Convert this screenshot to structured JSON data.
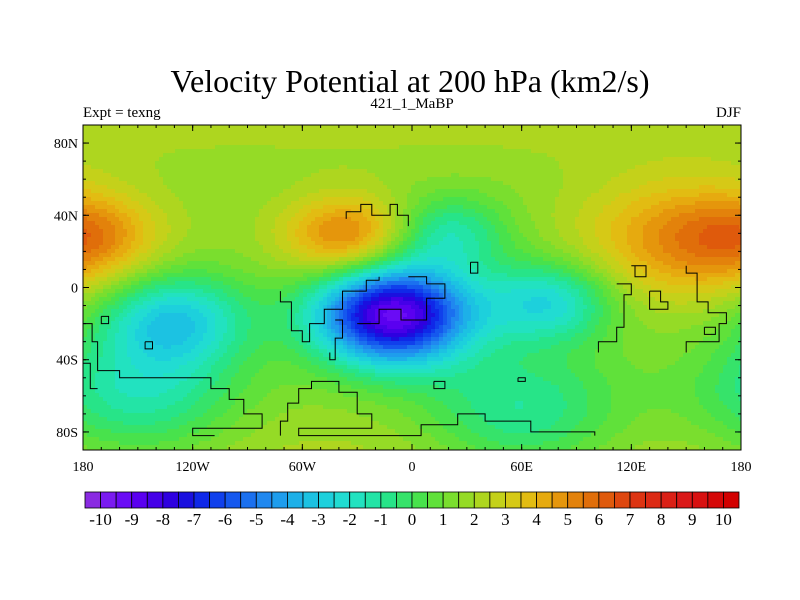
{
  "chart_data": {
    "type": "heatmap",
    "title": "Velocity Potential at 200 hPa (km2/s)",
    "subtitle_center": "421_1_MaBP",
    "subtitle_left": "Expt = texng",
    "subtitle_right": "DJF",
    "x_ticks": [
      "180",
      "120W",
      "60W",
      "0",
      "60E",
      "120E",
      "180"
    ],
    "x_tick_values": [
      -180,
      -120,
      -60,
      0,
      60,
      120,
      180
    ],
    "y_ticks": [
      "80N",
      "40N",
      "0",
      "40S",
      "80S"
    ],
    "y_tick_values": [
      80,
      40,
      0,
      -40,
      -80
    ],
    "xlim": [
      -180,
      180
    ],
    "ylim": [
      -90,
      90
    ],
    "colorbar": {
      "labels": [
        "-10",
        "-9",
        "-8",
        "-7",
        "-6",
        "-5",
        "-4",
        "-3",
        "-2",
        "-1",
        "0",
        "1",
        "2",
        "3",
        "4",
        "5",
        "6",
        "7",
        "8",
        "9",
        "10"
      ],
      "label_values": [
        -10,
        -9,
        -8,
        -7,
        -6,
        -5,
        -4,
        -3,
        -2,
        -1,
        0,
        1,
        2,
        3,
        4,
        5,
        6,
        7,
        8,
        9,
        10
      ],
      "levels_min": -10,
      "levels_step": 0.5,
      "n_boxes": 42,
      "colors": [
        "#8a2be2",
        "#7a1bf0",
        "#6a0cf5",
        "#5a00f0",
        "#4500e8",
        "#2e00e0",
        "#1a10df",
        "#0f28e8",
        "#1040ec",
        "#1558ee",
        "#1b70ef",
        "#2088ef",
        "#1e9ded",
        "#1db0e8",
        "#1cc2e2",
        "#1dd0dc",
        "#21dcd2",
        "#22e2c0",
        "#23e4a6",
        "#27e488",
        "#36e36a",
        "#48e24c",
        "#60e13a",
        "#7ade2e",
        "#95db26",
        "#aed61f",
        "#c4d11a",
        "#d6c916",
        "#e2bc12",
        "#e6aa0f",
        "#e5960c",
        "#e3820b",
        "#e06e0a",
        "#df5a0c",
        "#de470f",
        "#dd3412",
        "#dc2a14",
        "#db2016",
        "#da1818",
        "#d81010",
        "#d50808",
        "#d20000"
      ]
    },
    "field_centers_lon_lat_value": [
      [
        -10,
        -15,
        -9.2,
        32
      ],
      [
        -35,
        28,
        5.6,
        26
      ],
      [
        145,
        27,
        4.7,
        40
      ],
      [
        -175,
        28,
        4.2,
        28
      ],
      [
        -130,
        -18,
        -2.8,
        30
      ],
      [
        75,
        -8,
        -2.4,
        26
      ],
      [
        150,
        -20,
        1.5,
        18
      ],
      [
        20,
        30,
        -1.3,
        24
      ],
      [
        -150,
        -60,
        -1.4,
        40
      ],
      [
        60,
        -70,
        -1.2,
        40
      ]
    ],
    "field_background_value": 1.6,
    "field_polar_bias": 0.6
  }
}
